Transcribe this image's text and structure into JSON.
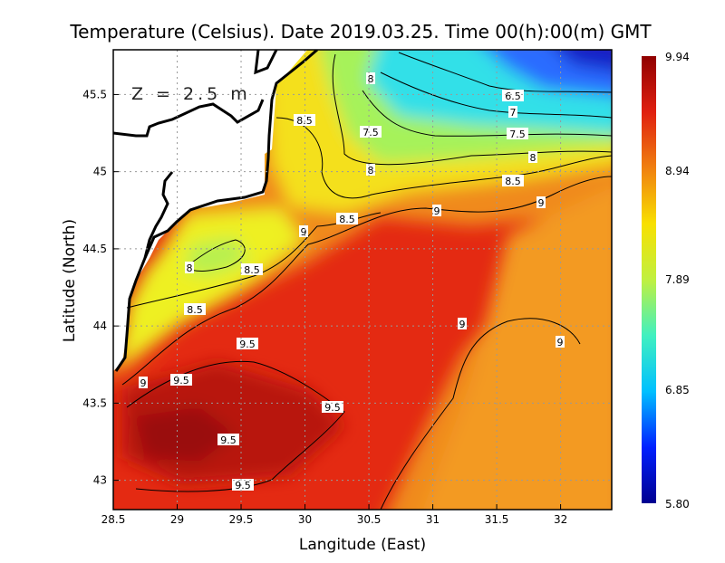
{
  "chart_data": {
    "type": "heatmap",
    "title": "Temperature (Celsius). Date 2019.03.25. Time 00(h):00(m)  GMT",
    "xlabel": "Langitude (East)",
    "ylabel": "Latitude (North)",
    "annotation": "Z = 2.5 m",
    "xlim": [
      28.5,
      32.4
    ],
    "ylim": [
      42.81,
      45.79
    ],
    "x_ticks": [
      "28.5",
      "29",
      "29.5",
      "30",
      "30.5",
      "31",
      "31.5",
      "32"
    ],
    "y_ticks": [
      "43",
      "43.5",
      "44",
      "44.5",
      "45",
      "45.5"
    ],
    "grid": true,
    "colorbar": {
      "range": [
        5.8,
        9.94
      ],
      "ticks": [
        "9.94",
        "8.94",
        "7.89",
        "6.85",
        "5.80"
      ],
      "colors": [
        "#000090",
        "#0020ff",
        "#00c0ff",
        "#40f0c0",
        "#c0f040",
        "#f8e000",
        "#f08010",
        "#e02010",
        "#900000"
      ]
    },
    "contour_labels": [
      "8",
      "6.5",
      "7",
      "7.5",
      "7.5",
      "8.5",
      "8",
      "8",
      "8.5",
      "9",
      "9",
      "8.5",
      "9",
      "8",
      "8.5",
      "8.5",
      "9",
      "9",
      "9.5",
      "9.5",
      "9",
      "9.5",
      "9.5",
      "9.5"
    ],
    "regions": {
      "northeast": "cold 6–7.5 °C (blue to cyan)",
      "coastal_northwest": "7.5–8.5 °C (green to yellow)",
      "southwest": "warm 9.5–9.9 °C (dark red)"
    }
  }
}
